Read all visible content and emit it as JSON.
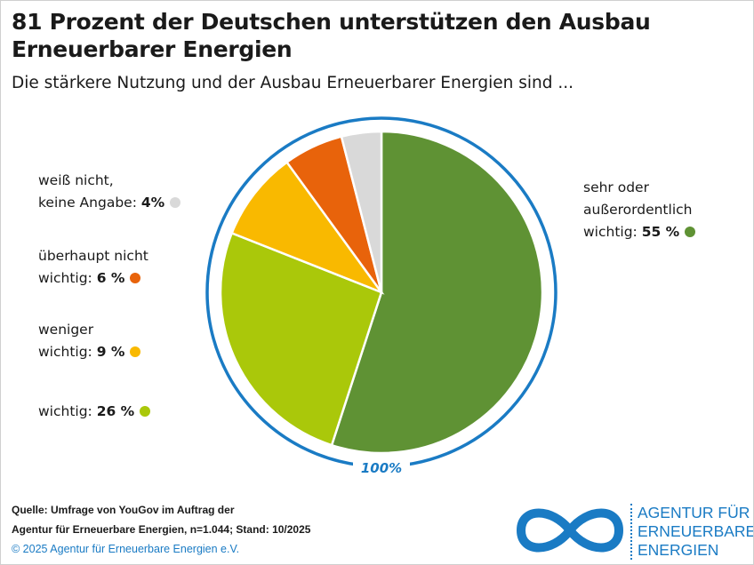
{
  "chart_data": {
    "type": "pie",
    "title": "81 Prozent der Deutschen unterstützen den Ausbau Erneuerbarer Energien",
    "subtitle": "Die stärkere Nutzung und der Ausbau Erneuerbarer Energien sind ...",
    "total_label": "100%",
    "slices": [
      {
        "line1": "sehr oder",
        "line2": "außerordentlich",
        "line3": "wichtig:",
        "value": 55,
        "value_label": "55 %",
        "color": "#5f9234"
      },
      {
        "line1": "",
        "line2": "",
        "line3": "wichtig:",
        "value": 26,
        "value_label": "26 %",
        "color": "#aac80a"
      },
      {
        "line1": "",
        "line2": "weniger",
        "line3": "wichtig:",
        "value": 9,
        "value_label": "9 %",
        "color": "#f9b900"
      },
      {
        "line1": "",
        "line2": "überhaupt nicht",
        "line3": "wichtig:",
        "value": 6,
        "value_label": "6 %",
        "color": "#e8630b"
      },
      {
        "line1": "",
        "line2": "weiß nicht,",
        "line3": "keine Angabe:",
        "value": 4,
        "value_label": "4%",
        "color": "#d9d9d9"
      }
    ],
    "ring_color": "#1a7bc4"
  },
  "footer": {
    "source_line1": "Quelle: Umfrage von YouGov im Auftrag der",
    "source_line2": "Agentur für Erneuerbare Energien, n=1.044; Stand: 10/2025",
    "copyright": "© 2025 Agentur für Erneuerbare Energien e.V."
  },
  "logo": {
    "line1": "AGENTUR FÜR",
    "line2": "ERNEUERBARE",
    "line3": "ENERGIEN"
  }
}
